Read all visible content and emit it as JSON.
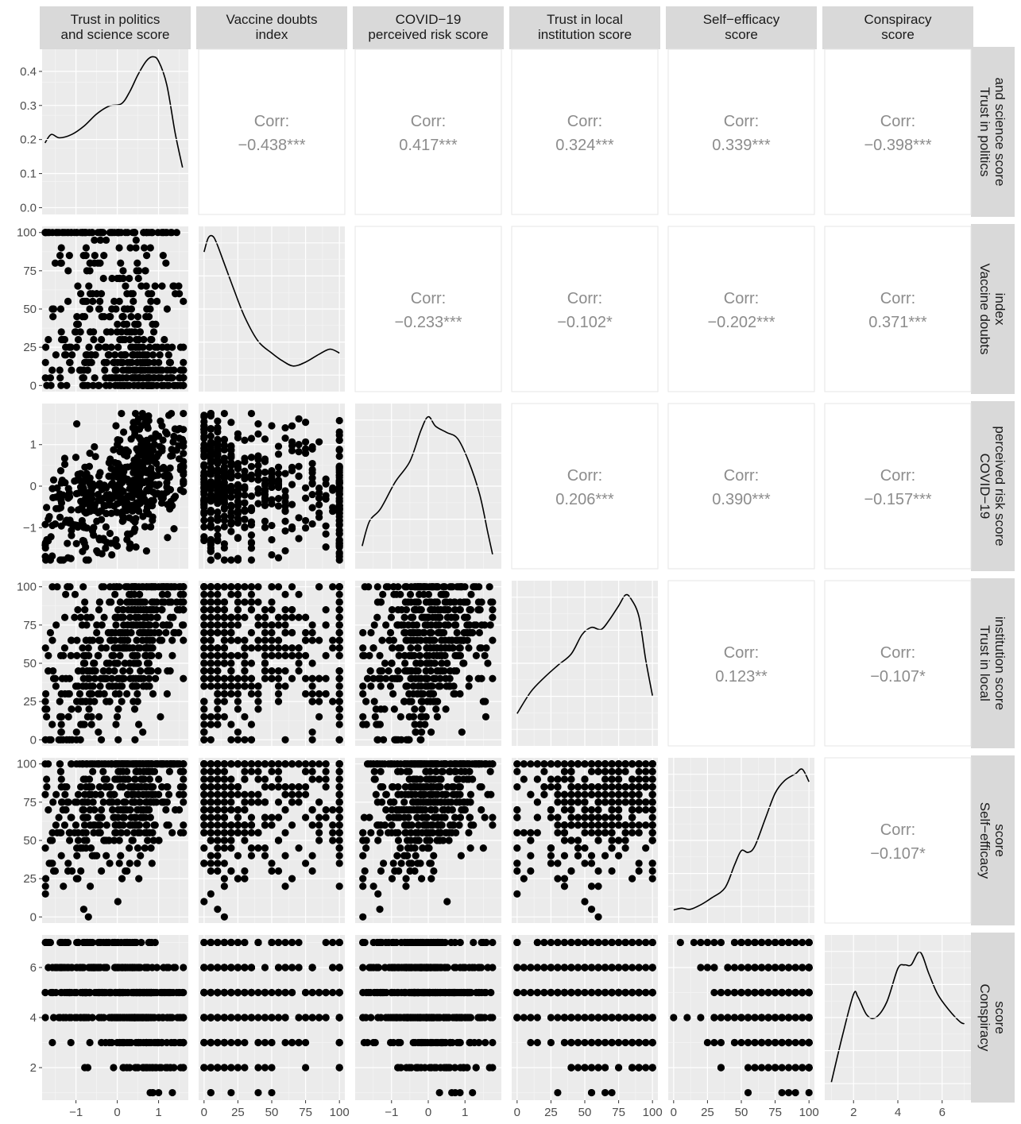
{
  "chart_data": {
    "type": "scatter",
    "variables": [
      {
        "id": "trust_ps",
        "label": [
          "Trust in politics",
          "and science score"
        ],
        "ticks": [
          -1,
          0,
          1
        ],
        "tick_labels": [
          "−1",
          "0",
          "1"
        ],
        "range": [
          -1.82,
          1.72
        ]
      },
      {
        "id": "vaccine_doubts",
        "label": [
          "Vaccine doubts",
          "index"
        ],
        "ticks": [
          0,
          25,
          50,
          75,
          100
        ],
        "tick_labels": [
          "0",
          "25",
          "50",
          "75",
          "100"
        ],
        "range": [
          -4,
          104
        ]
      },
      {
        "id": "covid_risk",
        "label": [
          "COVID−19",
          "perceived risk score"
        ],
        "ticks": [
          -1,
          0,
          1
        ],
        "tick_labels": [
          "−1",
          "0",
          "1"
        ],
        "range": [
          -1.99,
          1.99
        ]
      },
      {
        "id": "trust_local",
        "label": [
          "Trust in local",
          "institution score"
        ],
        "ticks": [
          0,
          25,
          50,
          75,
          100
        ],
        "tick_labels": [
          "0",
          "25",
          "50",
          "75",
          "100"
        ],
        "range": [
          -4,
          104
        ]
      },
      {
        "id": "self_efficacy",
        "label": [
          "Self−efficacy",
          "score"
        ],
        "ticks": [
          0,
          25,
          50,
          75,
          100
        ],
        "tick_labels": [
          "0",
          "25",
          "50",
          "75",
          "100"
        ],
        "range": [
          -4,
          104
        ]
      },
      {
        "id": "conspiracy",
        "label": [
          "Conspiracy",
          "score"
        ],
        "ticks": [
          2,
          4,
          6
        ],
        "tick_labels": [
          "2",
          "4",
          "6"
        ],
        "range": [
          0.7,
          7.3
        ]
      }
    ],
    "density_axis": {
      "ticks": [
        0.0,
        0.1,
        0.2,
        0.3,
        0.4
      ],
      "tick_labels": [
        "0.0",
        "0.1",
        "0.2",
        "0.3",
        "0.4"
      ],
      "range": [
        -0.02,
        0.465
      ]
    },
    "correlations": [
      {
        "row": 0,
        "col": 1,
        "label": "Corr:",
        "value": "−0.438***"
      },
      {
        "row": 0,
        "col": 2,
        "label": "Corr:",
        "value": "0.417***"
      },
      {
        "row": 0,
        "col": 3,
        "label": "Corr:",
        "value": "0.324***"
      },
      {
        "row": 0,
        "col": 4,
        "label": "Corr:",
        "value": "0.339***"
      },
      {
        "row": 0,
        "col": 5,
        "label": "Corr:",
        "value": "−0.398***"
      },
      {
        "row": 1,
        "col": 2,
        "label": "Corr:",
        "value": "−0.233***"
      },
      {
        "row": 1,
        "col": 3,
        "label": "Corr:",
        "value": "−0.102*"
      },
      {
        "row": 1,
        "col": 4,
        "label": "Corr:",
        "value": "−0.202***"
      },
      {
        "row": 1,
        "col": 5,
        "label": "Corr:",
        "value": "0.371***"
      },
      {
        "row": 2,
        "col": 3,
        "label": "Corr:",
        "value": "0.206***"
      },
      {
        "row": 2,
        "col": 4,
        "label": "Corr:",
        "value": "0.390***"
      },
      {
        "row": 2,
        "col": 5,
        "label": "Corr:",
        "value": "−0.157***"
      },
      {
        "row": 3,
        "col": 4,
        "label": "Corr:",
        "value": "0.123**"
      },
      {
        "row": 3,
        "col": 5,
        "label": "Corr:",
        "value": "−0.107*"
      },
      {
        "row": 4,
        "col": 5,
        "label": "Corr:",
        "value": "−0.107*"
      }
    ],
    "densities": [
      [
        [
          -1.75,
          0.19
        ],
        [
          -1.6,
          0.215
        ],
        [
          -1.4,
          0.205
        ],
        [
          -1.1,
          0.215
        ],
        [
          -0.8,
          0.24
        ],
        [
          -0.5,
          0.275
        ],
        [
          -0.2,
          0.298
        ],
        [
          0.1,
          0.305
        ],
        [
          0.3,
          0.34
        ],
        [
          0.5,
          0.39
        ],
        [
          0.7,
          0.43
        ],
        [
          0.85,
          0.443
        ],
        [
          1.0,
          0.43
        ],
        [
          1.2,
          0.36
        ],
        [
          1.4,
          0.22
        ],
        [
          1.58,
          0.118
        ]
      ],
      [
        [
          0,
          0.0335
        ],
        [
          3,
          0.037
        ],
        [
          6,
          0.0376
        ],
        [
          9,
          0.036
        ],
        [
          15,
          0.0305
        ],
        [
          22,
          0.024
        ],
        [
          30,
          0.017
        ],
        [
          40,
          0.0108
        ],
        [
          50,
          0.0078
        ],
        [
          58,
          0.0058
        ],
        [
          66,
          0.0045
        ],
        [
          75,
          0.0055
        ],
        [
          85,
          0.0075
        ],
        [
          93,
          0.0088
        ],
        [
          100,
          0.0078
        ]
      ],
      [
        [
          -1.8,
          0.115
        ],
        [
          -1.6,
          0.175
        ],
        [
          -1.3,
          0.205
        ],
        [
          -0.9,
          0.27
        ],
        [
          -0.5,
          0.32
        ],
        [
          -0.2,
          0.395
        ],
        [
          0.0,
          0.428
        ],
        [
          0.2,
          0.405
        ],
        [
          0.5,
          0.39
        ],
        [
          0.8,
          0.375
        ],
        [
          1.1,
          0.32
        ],
        [
          1.4,
          0.24
        ],
        [
          1.62,
          0.148
        ],
        [
          1.75,
          0.095
        ]
      ],
      [
        [
          0,
          0.0055
        ],
        [
          10,
          0.0085
        ],
        [
          20,
          0.0105
        ],
        [
          30,
          0.0122
        ],
        [
          40,
          0.0138
        ],
        [
          48,
          0.0165
        ],
        [
          55,
          0.0175
        ],
        [
          62,
          0.0172
        ],
        [
          68,
          0.0185
        ],
        [
          75,
          0.0205
        ],
        [
          80,
          0.022
        ],
        [
          84,
          0.0215
        ],
        [
          90,
          0.019
        ],
        [
          95,
          0.013
        ],
        [
          100,
          0.008
        ]
      ],
      [
        [
          0,
          0.0023
        ],
        [
          6,
          0.0026
        ],
        [
          12,
          0.0024
        ],
        [
          20,
          0.0032
        ],
        [
          28,
          0.0044
        ],
        [
          38,
          0.0062
        ],
        [
          45,
          0.0102
        ],
        [
          50,
          0.0127
        ],
        [
          55,
          0.0124
        ],
        [
          60,
          0.0135
        ],
        [
          68,
          0.0185
        ],
        [
          75,
          0.0228
        ],
        [
          82,
          0.025
        ],
        [
          90,
          0.0262
        ],
        [
          95,
          0.027
        ],
        [
          100,
          0.0248
        ]
      ],
      [
        [
          1.0,
          0.035
        ],
        [
          1.5,
          0.125
        ],
        [
          2.0,
          0.205
        ],
        [
          2.2,
          0.2
        ],
        [
          2.6,
          0.165
        ],
        [
          3.0,
          0.16
        ],
        [
          3.5,
          0.19
        ],
        [
          4.0,
          0.255
        ],
        [
          4.3,
          0.262
        ],
        [
          4.6,
          0.262
        ],
        [
          5.0,
          0.287
        ],
        [
          5.4,
          0.245
        ],
        [
          5.8,
          0.205
        ],
        [
          6.3,
          0.175
        ],
        [
          6.8,
          0.152
        ],
        [
          7.0,
          0.148
        ]
      ]
    ],
    "density_ranges": [
      [
        -0.02,
        0.465
      ],
      [
        -0.002,
        0.04
      ],
      [
        0.06,
        0.46
      ],
      [
        0.001,
        0.024
      ],
      [
        0.0,
        0.029
      ],
      [
        0.0,
        0.32
      ]
    ],
    "n_points": 480
  }
}
